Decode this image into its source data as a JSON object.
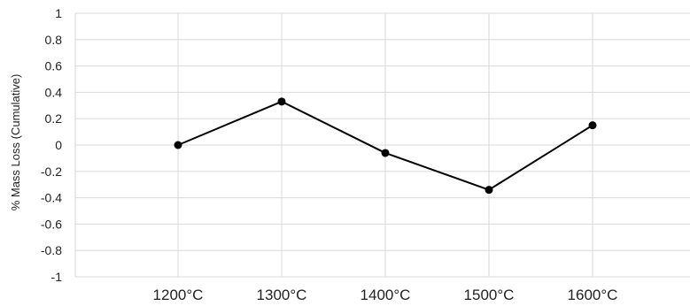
{
  "chart_data": {
    "type": "line",
    "title": "",
    "xlabel": "",
    "ylabel": "% Mass Loss (Cumulative)",
    "categories": [
      "1200°C",
      "1300°C",
      "1400°C",
      "1500°C",
      "1600°C"
    ],
    "y_ticks": [
      "1",
      "0.8",
      "0.6",
      "0.4",
      "0.2",
      "0",
      "-0.2",
      "-0.4",
      "-0.6",
      "-0.8",
      "-1"
    ],
    "ylim": [
      -1,
      1
    ],
    "y_step": 0.2,
    "grid": true,
    "legend": "none",
    "series": [
      {
        "values": [
          0.0,
          0.33,
          -0.06,
          -0.34,
          0.15
        ],
        "color": "#000000",
        "marker": "circle"
      }
    ]
  }
}
